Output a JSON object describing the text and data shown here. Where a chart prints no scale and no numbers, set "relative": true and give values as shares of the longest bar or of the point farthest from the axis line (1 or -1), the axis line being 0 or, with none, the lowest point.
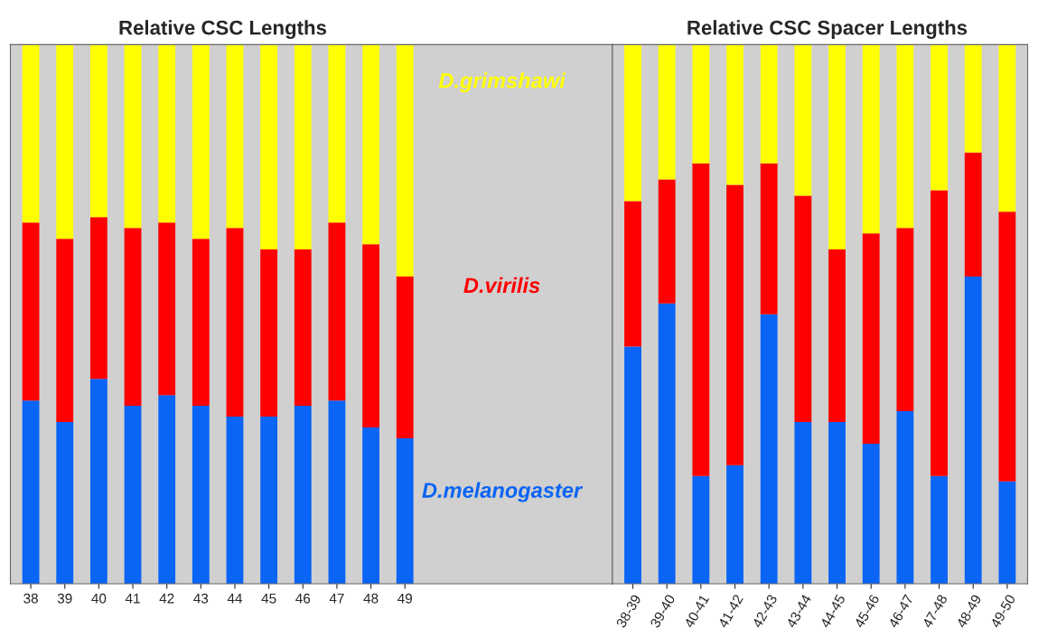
{
  "chart_data": [
    {
      "type": "bar",
      "title": "Relative CSC Lengths",
      "stacked": true,
      "relative": true,
      "categories": [
        "38",
        "39",
        "40",
        "41",
        "42",
        "43",
        "44",
        "45",
        "46",
        "47",
        "48",
        "49"
      ],
      "series": [
        {
          "name": "D.melanogaster",
          "color": "#0a64f5",
          "values": [
            0.34,
            0.3,
            0.38,
            0.33,
            0.35,
            0.33,
            0.31,
            0.31,
            0.33,
            0.34,
            0.29,
            0.27
          ]
        },
        {
          "name": "D.virilis",
          "color": "#ff0000",
          "values": [
            0.33,
            0.34,
            0.3,
            0.33,
            0.32,
            0.31,
            0.35,
            0.31,
            0.29,
            0.33,
            0.34,
            0.3
          ]
        },
        {
          "name": "D.grimshawi",
          "color": "#ffff00",
          "values": [
            0.33,
            0.36,
            0.32,
            0.34,
            0.33,
            0.36,
            0.34,
            0.38,
            0.38,
            0.33,
            0.37,
            0.43
          ]
        }
      ]
    },
    {
      "type": "bar",
      "title": "Relative CSC Spacer Lengths",
      "stacked": true,
      "relative": true,
      "categories": [
        "38-39",
        "39-40",
        "40-41",
        "41-42",
        "42-43",
        "43-44",
        "44-45",
        "45-46",
        "46-47",
        "47-48",
        "48-49",
        "49-50"
      ],
      "series": [
        {
          "color": "#0a64f5",
          "values": [
            0.44,
            0.52,
            0.2,
            0.22,
            0.5,
            0.3,
            0.3,
            0.26,
            0.32,
            0.2,
            0.57,
            0.19
          ]
        },
        {
          "color": "#ff0000",
          "values": [
            0.27,
            0.23,
            0.58,
            0.52,
            0.28,
            0.42,
            0.32,
            0.39,
            0.34,
            0.53,
            0.23,
            0.5
          ]
        },
        {
          "color": "#ffff00",
          "values": [
            0.29,
            0.25,
            0.22,
            0.26,
            0.22,
            0.28,
            0.38,
            0.35,
            0.34,
            0.27,
            0.2,
            0.31
          ]
        }
      ]
    }
  ]
}
